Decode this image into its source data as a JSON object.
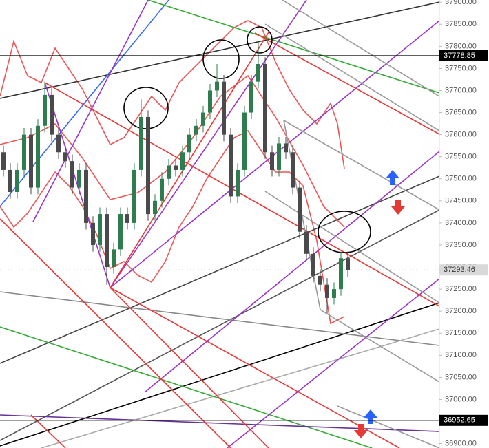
{
  "chart_data": {
    "type": "candlestick",
    "ylim": [
      36890,
      37905
    ],
    "yticks": [
      {
        "value": 37900,
        "label": "37900.00"
      },
      {
        "value": 37850,
        "label": "37850.00"
      },
      {
        "value": 37800,
        "label": "37800.00"
      },
      {
        "value": 37750,
        "label": "37750.00"
      },
      {
        "value": 37700,
        "label": "37700.00"
      },
      {
        "value": 37650,
        "label": "37650.00"
      },
      {
        "value": 37600,
        "label": "37600.00"
      },
      {
        "value": 37550,
        "label": "37550.00"
      },
      {
        "value": 37500,
        "label": "37500.00"
      },
      {
        "value": 37450,
        "label": "37450.00"
      },
      {
        "value": 37400,
        "label": "37400.00"
      },
      {
        "value": 37350,
        "label": "37350.00"
      },
      {
        "value": 37300,
        "label": "37300.00"
      },
      {
        "value": 37250,
        "label": "37250.00"
      },
      {
        "value": 37200,
        "label": "37200.00"
      },
      {
        "value": 37150,
        "label": "37150.00"
      },
      {
        "value": 37100,
        "label": "37100.00"
      },
      {
        "value": 37050,
        "label": "37050.00"
      },
      {
        "value": 37000,
        "label": "37000.00"
      },
      {
        "value": 36950,
        "label": "36950.00"
      },
      {
        "value": 36900,
        "label": "36900.00"
      }
    ],
    "up_color": "#2e7d4f",
    "down_color": "#4a4a4a",
    "open": [
      37560,
      37520,
      37470,
      37520,
      37600,
      37480,
      37620,
      37690,
      37600,
      37560,
      37540,
      37480,
      37520,
      37400,
      37350,
      37420,
      37300,
      37340,
      37420,
      37400,
      37520,
      37640,
      37420,
      37450,
      37500,
      37530,
      37520,
      37560,
      37600,
      37620,
      37650,
      37700,
      37720,
      37600,
      37460,
      37520,
      37650,
      37720,
      37760,
      37560,
      37520,
      37580,
      37560,
      37480,
      37380,
      37330,
      37280,
      37260,
      37230,
      37250,
      37320
    ],
    "high": [
      37575,
      37535,
      37535,
      37615,
      37615,
      37635,
      37720,
      37705,
      37615,
      37575,
      37555,
      37535,
      37535,
      37415,
      37435,
      37435,
      37355,
      37435,
      37435,
      37535,
      37680,
      37655,
      37465,
      37515,
      37545,
      37545,
      37575,
      37615,
      37635,
      37665,
      37715,
      37760,
      37735,
      37615,
      37535,
      37665,
      37735,
      37810,
      37775,
      37575,
      37595,
      37595,
      37575,
      37495,
      37395,
      37345,
      37295,
      37275,
      37265,
      37335,
      37335
    ],
    "low": [
      37505,
      37455,
      37455,
      37505,
      37465,
      37465,
      37605,
      37585,
      37545,
      37525,
      37465,
      37465,
      37385,
      37335,
      37335,
      37260,
      37285,
      37325,
      37385,
      37385,
      37505,
      37405,
      37405,
      37435,
      37485,
      37505,
      37505,
      37545,
      37585,
      37605,
      37635,
      37685,
      37585,
      37445,
      37445,
      37505,
      37635,
      37705,
      37545,
      37505,
      37505,
      37545,
      37465,
      37365,
      37315,
      37265,
      37245,
      37195,
      37215,
      37235,
      37278
    ],
    "close": [
      37520,
      37470,
      37520,
      37600,
      37480,
      37620,
      37690,
      37600,
      37560,
      37540,
      37480,
      37520,
      37400,
      37350,
      37420,
      37300,
      37340,
      37420,
      37400,
      37520,
      37640,
      37420,
      37450,
      37500,
      37530,
      37520,
      37560,
      37600,
      37620,
      37650,
      37700,
      37720,
      37600,
      37460,
      37520,
      37650,
      37720,
      37760,
      37560,
      37520,
      37580,
      37560,
      37480,
      37380,
      37330,
      37280,
      37260,
      37230,
      37250,
      37320,
      37293
    ],
    "price_labels": [
      37778.85,
      37293.46,
      36952.65
    ],
    "price_label_colors": [
      "#000000",
      "#d9d9d9",
      "#000000"
    ]
  }
}
